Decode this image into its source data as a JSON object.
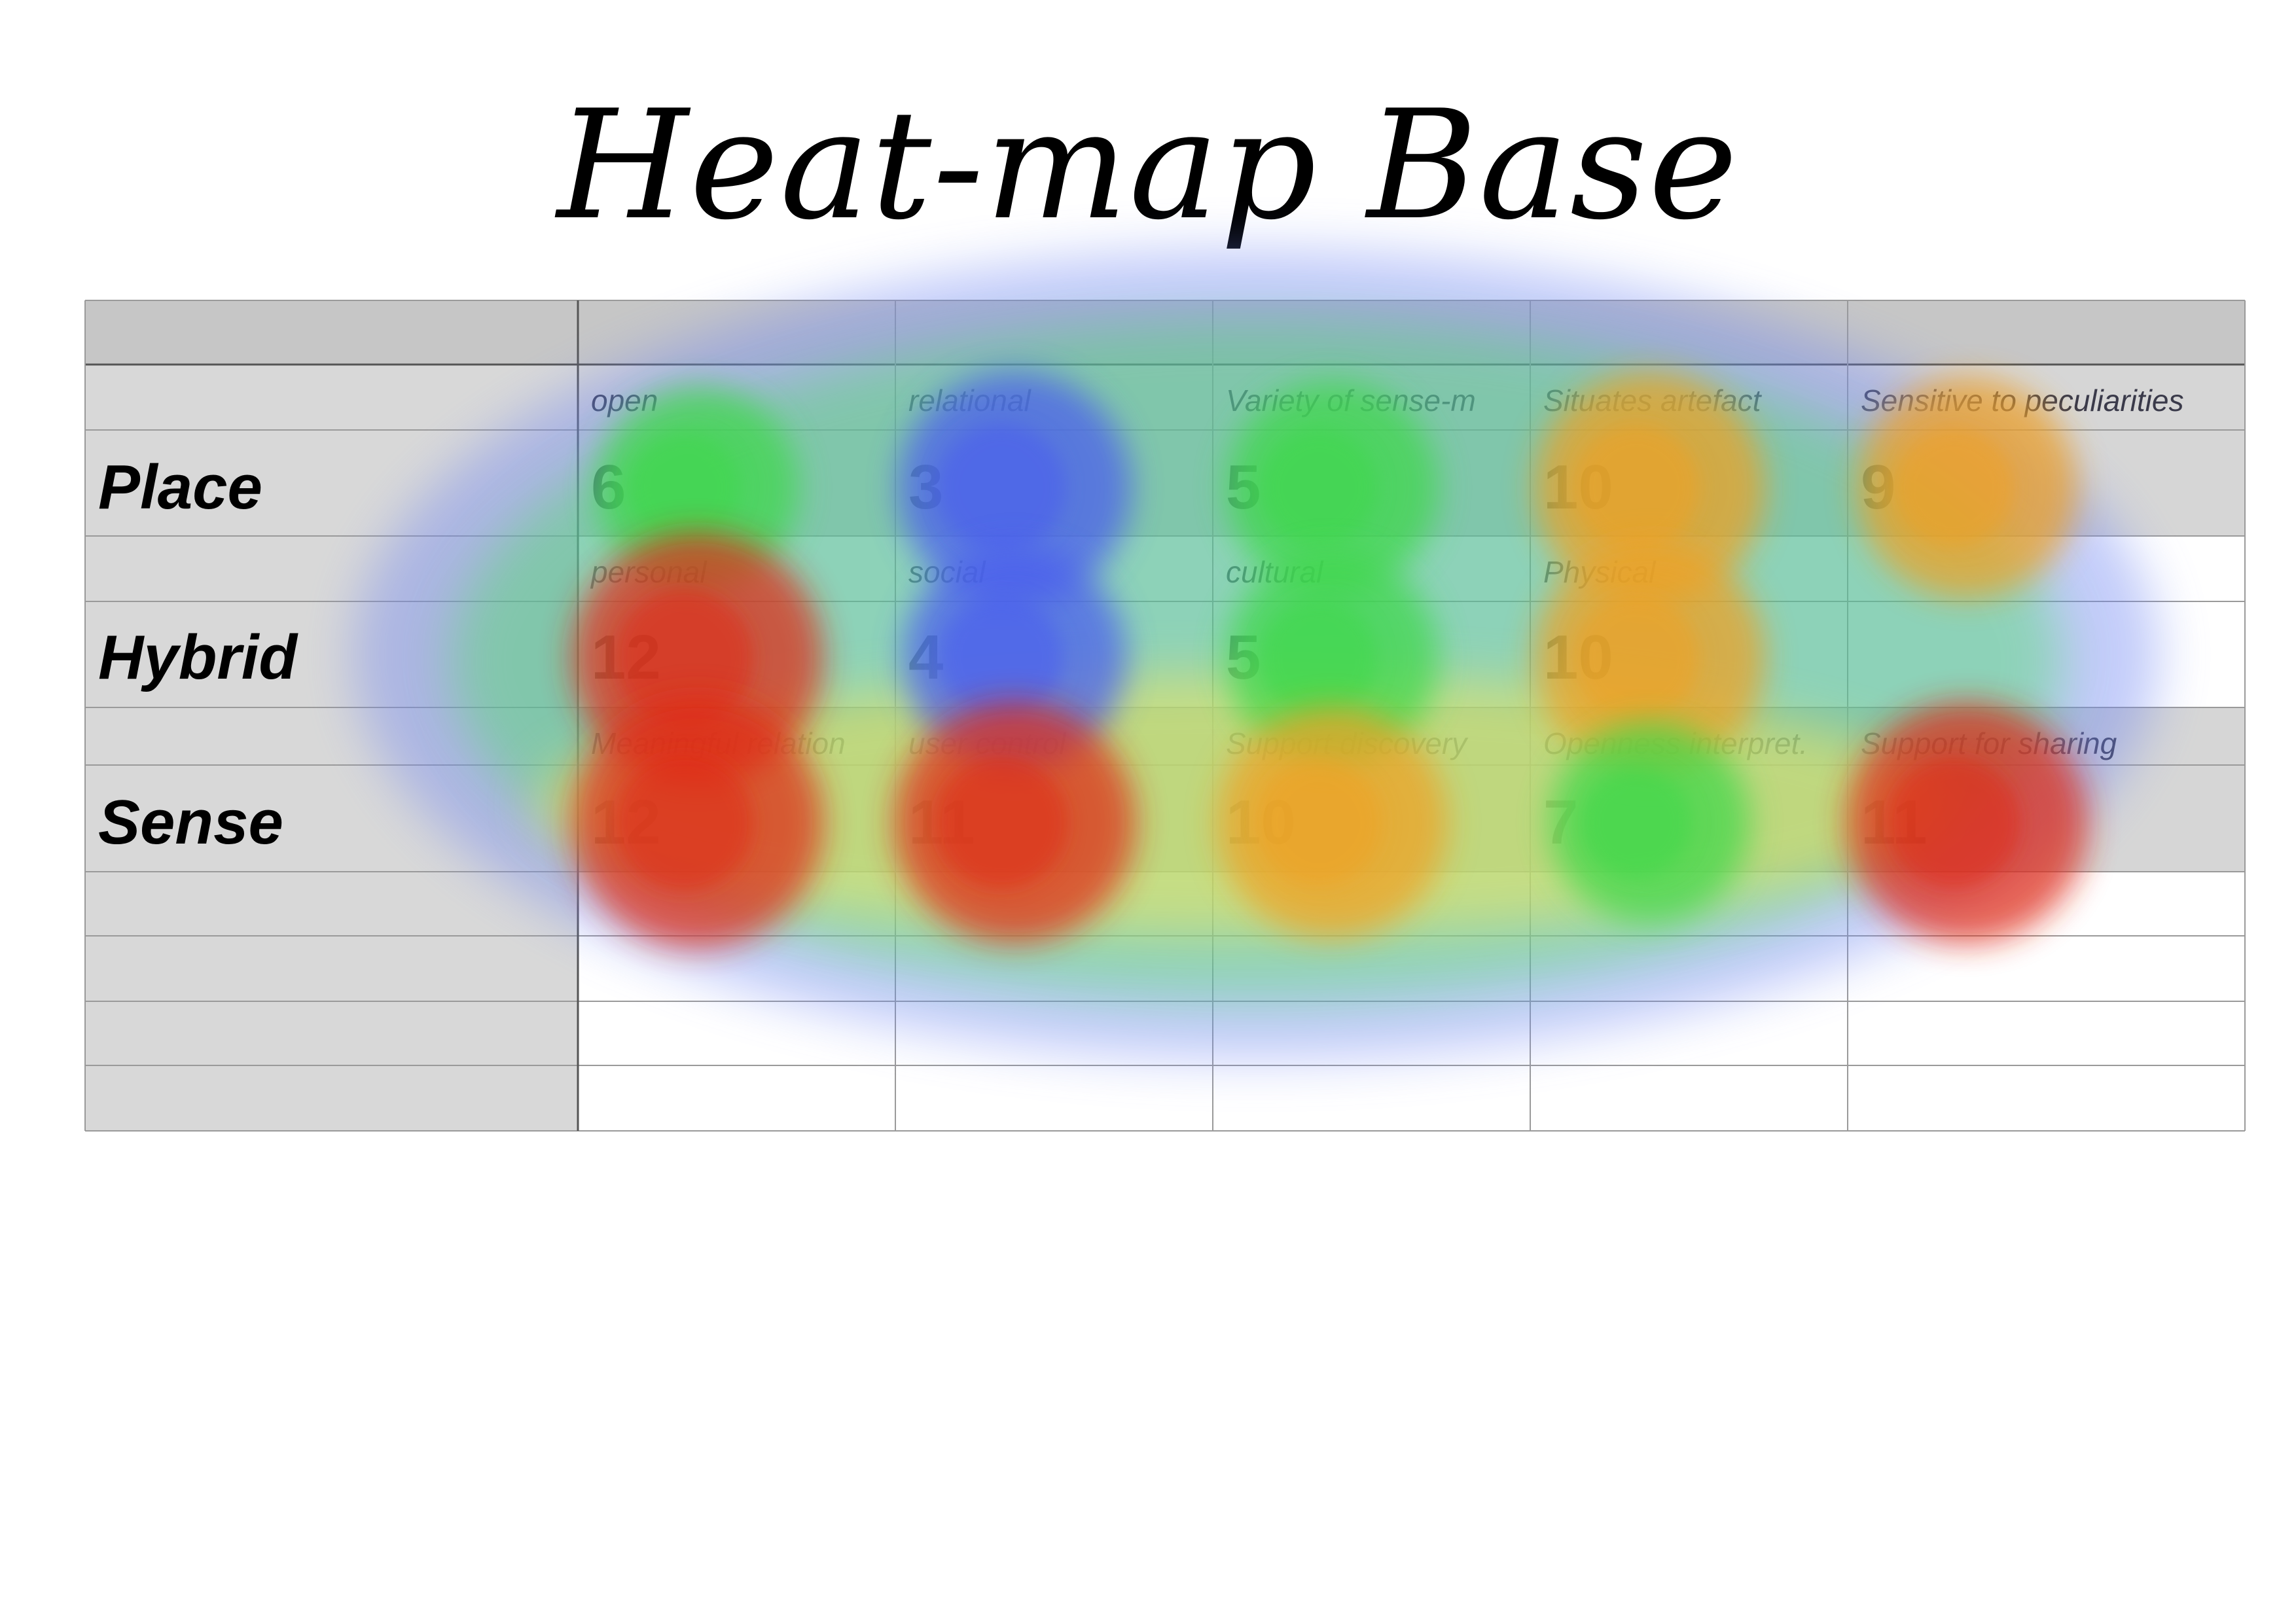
{
  "title": "Heat-map Base",
  "chart_data": {
    "type": "heatmap",
    "title": "Heat-map Base",
    "rows": [
      "Place",
      "Hybrid",
      "Sense"
    ],
    "cells": [
      [
        {
          "label": "open",
          "value": 6
        },
        {
          "label": "relational",
          "value": 3
        },
        {
          "label": "Variety of sense-m",
          "value": 5
        },
        {
          "label": "Situates artefact",
          "value": 10
        },
        {
          "label": "Sensitive to peculiarities",
          "value": 9
        }
      ],
      [
        {
          "label": "personal",
          "value": 12
        },
        {
          "label": "social",
          "value": 4
        },
        {
          "label": "cultural",
          "value": 5
        },
        {
          "label": "Physical",
          "value": 10
        },
        null
      ],
      [
        {
          "label": "Meaningful relation",
          "value": 12
        },
        {
          "label": "user control",
          "value": 11
        },
        {
          "label": "Support discovery",
          "value": 10
        },
        {
          "label": "Openness interpret.",
          "value": 7
        },
        {
          "label": "Support for sharing",
          "value": 11
        }
      ]
    ],
    "colorscale": [
      "#4a5cf0",
      "#3dd84a",
      "#f7e43a",
      "#f0a020",
      "#e02a12"
    ],
    "range": [
      3,
      12
    ]
  }
}
